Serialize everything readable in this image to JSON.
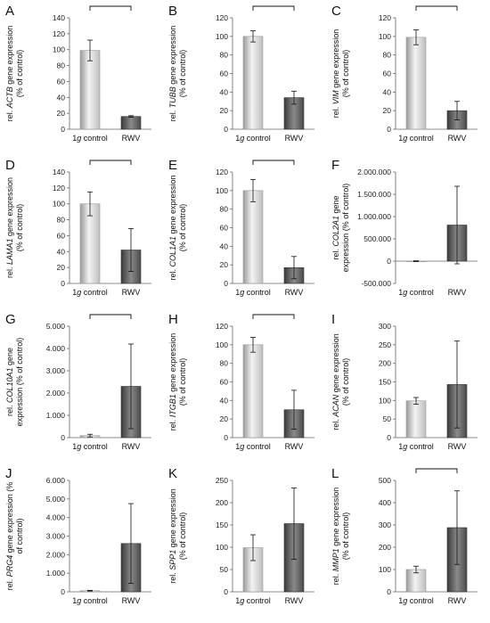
{
  "chart_data": [
    {
      "letter": "A",
      "type": "bar",
      "gene": "ACTB",
      "ylabel": [
        "rel. {gene} gene expression",
        "(% of control)"
      ],
      "categories": [
        "1g control",
        "RWV"
      ],
      "values": [
        99,
        16
      ],
      "err": [
        13,
        1
      ],
      "ylim": [
        0,
        140
      ],
      "ticks": [
        0,
        20,
        40,
        60,
        80,
        100,
        120,
        140
      ],
      "sig": true
    },
    {
      "letter": "B",
      "type": "bar",
      "gene": "TUBB",
      "ylabel": [
        "rel. {gene} gene expression",
        "(% of control)"
      ],
      "categories": [
        "1g control",
        "RWV"
      ],
      "values": [
        100,
        34
      ],
      "err": [
        6,
        7
      ],
      "ylim": [
        0,
        120
      ],
      "ticks": [
        0,
        20,
        40,
        60,
        80,
        100,
        120
      ],
      "sig": true
    },
    {
      "letter": "C",
      "type": "bar",
      "gene": "VIM",
      "ylabel": [
        "rel. {gene} gene expression",
        "(% of control)"
      ],
      "categories": [
        "1g control",
        "RWV"
      ],
      "values": [
        99,
        20
      ],
      "err": [
        8,
        10
      ],
      "ylim": [
        0,
        120
      ],
      "ticks": [
        0,
        20,
        40,
        60,
        80,
        100,
        120
      ],
      "sig": true
    },
    {
      "letter": "D",
      "type": "bar",
      "gene": "LAMA1",
      "ylabel": [
        "rel. {gene} gene expression",
        "(% of control)"
      ],
      "categories": [
        "1g control",
        "RWV"
      ],
      "values": [
        100,
        42
      ],
      "err": [
        15,
        27
      ],
      "ylim": [
        0,
        140
      ],
      "ticks": [
        0,
        20,
        40,
        60,
        80,
        100,
        120,
        140
      ],
      "sig": true
    },
    {
      "letter": "E",
      "type": "bar",
      "gene": "COL1A1",
      "ylabel": [
        "rel. {gene} gene expression",
        "(% of control)"
      ],
      "categories": [
        "1g control",
        "RWV"
      ],
      "values": [
        100,
        17
      ],
      "err": [
        12,
        12
      ],
      "ylim": [
        0,
        120
      ],
      "ticks": [
        0,
        20,
        40,
        60,
        80,
        100,
        120
      ],
      "sig": true
    },
    {
      "letter": "F",
      "type": "bar",
      "gene": "COL2A1",
      "ylabel": [
        "rel. {gene} gene",
        "expression (% of control)"
      ],
      "categories": [
        "1g control",
        "RWV"
      ],
      "values": [
        0,
        810000
      ],
      "err": [
        8000,
        870000
      ],
      "ylim": [
        -500000,
        2000000
      ],
      "ticks": [
        -500000,
        0,
        500000,
        1000000,
        1500000,
        2000000
      ],
      "tickLabels": [
        "-500.000",
        "0",
        "500.000",
        "1.000.000",
        "1.500.000",
        "2.000.000"
      ],
      "sig": false
    },
    {
      "letter": "G",
      "type": "bar",
      "gene": "COL10A1",
      "ylabel": [
        "rel. {gene} gene",
        "expression (% of control)"
      ],
      "categories": [
        "1g control",
        "RWV"
      ],
      "values": [
        90,
        2300
      ],
      "err": [
        60,
        1900
      ],
      "ylim": [
        0,
        5000
      ],
      "ticks": [
        0,
        1000,
        2000,
        3000,
        4000,
        5000
      ],
      "tickLabels": [
        "0",
        "1.000",
        "2.000",
        "3.000",
        "4.000",
        "5.000"
      ],
      "sig": true
    },
    {
      "letter": "H",
      "type": "bar",
      "gene": "ITGB1",
      "ylabel": [
        "rel. {gene} gene expression",
        "(% of control)"
      ],
      "categories": [
        "1g control",
        "RWV"
      ],
      "values": [
        100,
        30
      ],
      "err": [
        8,
        21
      ],
      "ylim": [
        0,
        120
      ],
      "ticks": [
        0,
        20,
        40,
        60,
        80,
        100,
        120
      ],
      "sig": true
    },
    {
      "letter": "I",
      "type": "bar",
      "gene": "ACAN",
      "ylabel": [
        "rel. {gene} gene expression",
        "(% of control)"
      ],
      "categories": [
        "1g control",
        "RWV"
      ],
      "values": [
        99,
        143
      ],
      "err": [
        9,
        117
      ],
      "ylim": [
        0,
        300
      ],
      "ticks": [
        0,
        50,
        100,
        150,
        200,
        250,
        300
      ],
      "sig": false
    },
    {
      "letter": "J",
      "type": "bar",
      "gene": "PRG4",
      "ylabel": [
        "rel. {gene} gene expression (%",
        "of control)"
      ],
      "categories": [
        "1g control",
        "RWV"
      ],
      "values": [
        60,
        2600
      ],
      "err": [
        20,
        2150
      ],
      "ylim": [
        0,
        6000
      ],
      "ticks": [
        0,
        1000,
        2000,
        3000,
        4000,
        5000,
        6000
      ],
      "tickLabels": [
        "0",
        "1.000",
        "2.000",
        "3.000",
        "4.000",
        "5.000",
        "6.000"
      ],
      "sig": false
    },
    {
      "letter": "K",
      "type": "bar",
      "gene": "SPP1",
      "ylabel": [
        "rel. {gene} gene expression",
        "(% of control)"
      ],
      "categories": [
        "1g control",
        "RWV"
      ],
      "values": [
        99,
        153
      ],
      "err": [
        29,
        80
      ],
      "ylim": [
        0,
        250
      ],
      "ticks": [
        0,
        50,
        100,
        150,
        200,
        250
      ],
      "sig": false
    },
    {
      "letter": "L",
      "type": "bar",
      "gene": "MMP1",
      "ylabel": [
        "rel. {gene} gene expression",
        "(% of control)"
      ],
      "categories": [
        "1g control",
        "RWV"
      ],
      "values": [
        100,
        288
      ],
      "err": [
        15,
        165
      ],
      "ylim": [
        0,
        500
      ],
      "ticks": [
        0,
        100,
        200,
        300,
        400,
        500
      ],
      "sig": true
    }
  ]
}
